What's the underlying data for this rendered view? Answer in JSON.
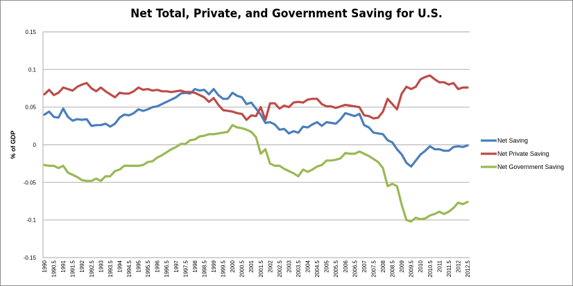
{
  "chart_data": {
    "type": "line",
    "title": "Net Total, Private, and Government Saving for U.S.",
    "xlabel": "",
    "ylabel": "% of GDP",
    "ylim": [
      -0.15,
      0.15
    ],
    "yticks": [
      "0.15",
      "0.1",
      "0.05",
      "0",
      "-0.05",
      "-0.1",
      "-0.15"
    ],
    "ytick_values": [
      0.15,
      0.1,
      0.05,
      0,
      -0.05,
      -0.1,
      -0.15
    ],
    "xticks": [
      "1990",
      "1990.5",
      "1991",
      "1991.5",
      "1992",
      "1992.5",
      "1993",
      "1993.5",
      "1994",
      "1994.5",
      "1995",
      "1995.5",
      "1996",
      "1996.5",
      "1997",
      "1997.5",
      "1998",
      "1998.5",
      "1999",
      "1999.5",
      "2000",
      "2000.5",
      "2001",
      "2001.5",
      "2002",
      "2002.5",
      "2003",
      "2003.5",
      "2004",
      "2004.5",
      "2005",
      "2005.5",
      "2006",
      "2006.5",
      "2007",
      "2007.5",
      "2008",
      "2008.5",
      "2009",
      "2009.5",
      "2010",
      "2010.5",
      "2011",
      "2011.5",
      "2012",
      "2012.5"
    ],
    "x_start": 1990,
    "x_step": 0.25,
    "grid": true,
    "legend_position": "right",
    "series": [
      {
        "name": "Net Saving",
        "color": "#4a7ebb",
        "values": [
          0.04,
          0.044,
          0.037,
          0.036,
          0.048,
          0.037,
          0.032,
          0.034,
          0.033,
          0.034,
          0.025,
          0.026,
          0.026,
          0.028,
          0.024,
          0.028,
          0.036,
          0.04,
          0.039,
          0.042,
          0.047,
          0.045,
          0.047,
          0.05,
          0.051,
          0.054,
          0.057,
          0.06,
          0.063,
          0.068,
          0.069,
          0.068,
          0.074,
          0.072,
          0.073,
          0.067,
          0.074,
          0.066,
          0.061,
          0.061,
          0.069,
          0.065,
          0.063,
          0.054,
          0.056,
          0.048,
          0.04,
          0.029,
          0.03,
          0.027,
          0.02,
          0.021,
          0.015,
          0.018,
          0.016,
          0.024,
          0.023,
          0.027,
          0.03,
          0.025,
          0.03,
          0.029,
          0.028,
          0.034,
          0.042,
          0.04,
          0.038,
          0.041,
          0.026,
          0.023,
          0.016,
          0.015,
          0.014,
          0.006,
          0.003,
          -0.006,
          -0.013,
          -0.024,
          -0.029,
          -0.021,
          -0.013,
          -0.008,
          -0.002,
          -0.006,
          -0.006,
          -0.008,
          -0.008,
          -0.003,
          -0.002,
          -0.003,
          -0.001
        ]
      },
      {
        "name": "Net Private Saving",
        "color": "#be4b48",
        "values": [
          0.067,
          0.073,
          0.066,
          0.069,
          0.076,
          0.074,
          0.072,
          0.077,
          0.08,
          0.082,
          0.075,
          0.071,
          0.076,
          0.071,
          0.067,
          0.063,
          0.069,
          0.068,
          0.068,
          0.071,
          0.076,
          0.073,
          0.074,
          0.072,
          0.073,
          0.071,
          0.071,
          0.07,
          0.071,
          0.072,
          0.07,
          0.07,
          0.069,
          0.066,
          0.063,
          0.057,
          0.062,
          0.053,
          0.046,
          0.045,
          0.044,
          0.042,
          0.041,
          0.033,
          0.039,
          0.038,
          0.05,
          0.033,
          0.055,
          0.055,
          0.048,
          0.052,
          0.05,
          0.056,
          0.057,
          0.056,
          0.06,
          0.061,
          0.061,
          0.054,
          0.051,
          0.051,
          0.049,
          0.051,
          0.053,
          0.052,
          0.051,
          0.05,
          0.039,
          0.038,
          0.035,
          0.036,
          0.044,
          0.061,
          0.054,
          0.047,
          0.068,
          0.077,
          0.074,
          0.077,
          0.087,
          0.09,
          0.092,
          0.087,
          0.083,
          0.083,
          0.08,
          0.082,
          0.074,
          0.076,
          0.076
        ]
      },
      {
        "name": "Net Government Saving",
        "color": "#98b954",
        "values": [
          -0.027,
          -0.028,
          -0.028,
          -0.031,
          -0.028,
          -0.037,
          -0.04,
          -0.043,
          -0.047,
          -0.048,
          -0.048,
          -0.045,
          -0.048,
          -0.042,
          -0.042,
          -0.035,
          -0.033,
          -0.028,
          -0.028,
          -0.028,
          -0.028,
          -0.027,
          -0.023,
          -0.022,
          -0.017,
          -0.014,
          -0.01,
          -0.006,
          -0.003,
          0.001,
          0.001,
          0.006,
          0.007,
          0.011,
          0.012,
          0.014,
          0.014,
          0.015,
          0.016,
          0.017,
          0.026,
          0.023,
          0.022,
          0.02,
          0.017,
          0.01,
          -0.012,
          -0.006,
          -0.025,
          -0.028,
          -0.028,
          -0.032,
          -0.035,
          -0.038,
          -0.042,
          -0.033,
          -0.036,
          -0.033,
          -0.029,
          -0.027,
          -0.021,
          -0.021,
          -0.02,
          -0.018,
          -0.011,
          -0.012,
          -0.012,
          -0.009,
          -0.012,
          -0.015,
          -0.019,
          -0.023,
          -0.031,
          -0.055,
          -0.052,
          -0.055,
          -0.08,
          -0.1,
          -0.102,
          -0.097,
          -0.099,
          -0.098,
          -0.094,
          -0.092,
          -0.089,
          -0.092,
          -0.089,
          -0.084,
          -0.077,
          -0.079,
          -0.076
        ]
      }
    ]
  }
}
